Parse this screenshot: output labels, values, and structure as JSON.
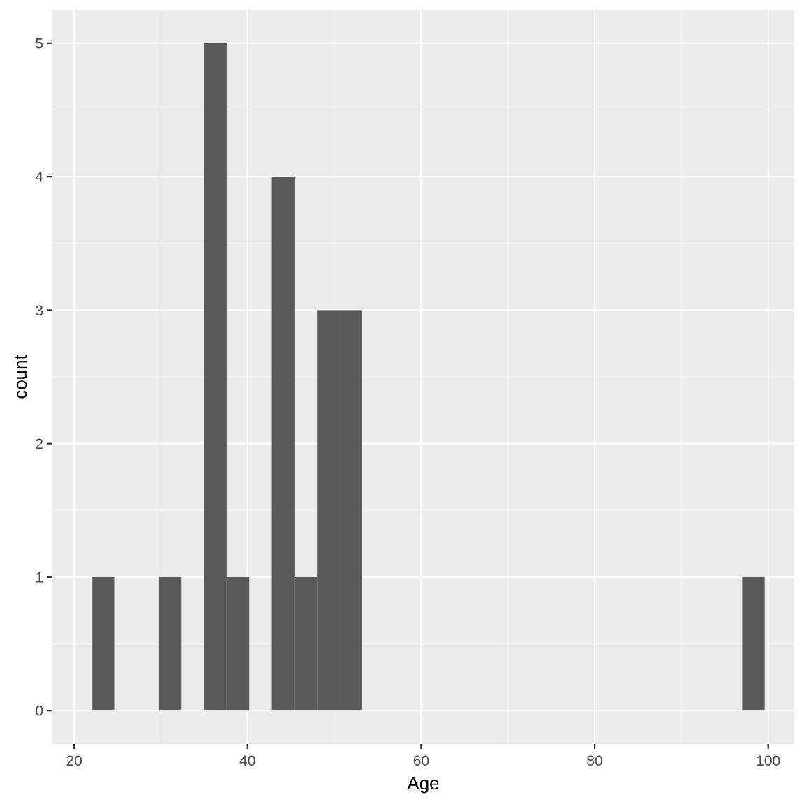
{
  "chart_data": {
    "type": "bar",
    "xlabel": "Age",
    "ylabel": "count",
    "xlim": [
      17.5,
      103.0
    ],
    "ylim": [
      -0.25,
      5.25
    ],
    "x_ticks": [
      20,
      40,
      60,
      80,
      100
    ],
    "x_tick_labels": [
      "20",
      "40",
      "60",
      "80",
      "100"
    ],
    "y_ticks": [
      0,
      1,
      2,
      3,
      4,
      5
    ],
    "y_tick_labels": [
      "0",
      "1",
      "2",
      "3",
      "4",
      "5"
    ],
    "grid": true,
    "bin_width": 2.6,
    "bins": [
      {
        "x0": 22.1,
        "x1": 24.7,
        "count": 1
      },
      {
        "x0": 29.8,
        "x1": 32.4,
        "count": 1
      },
      {
        "x0": 35.0,
        "x1": 37.6,
        "count": 5
      },
      {
        "x0": 37.6,
        "x1": 40.2,
        "count": 1
      },
      {
        "x0": 42.8,
        "x1": 45.4,
        "count": 4
      },
      {
        "x0": 45.4,
        "x1": 48.0,
        "count": 1
      },
      {
        "x0": 48.0,
        "x1": 50.6,
        "count": 3
      },
      {
        "x0": 50.6,
        "x1": 53.2,
        "count": 3
      },
      {
        "x0": 97.0,
        "x1": 99.6,
        "count": 1
      }
    ],
    "colors": {
      "panel": "#ebebeb",
      "grid_major": "#ffffff",
      "grid_minor": "#f5f5f5",
      "bar": "#595959",
      "tick": "#333333"
    }
  }
}
